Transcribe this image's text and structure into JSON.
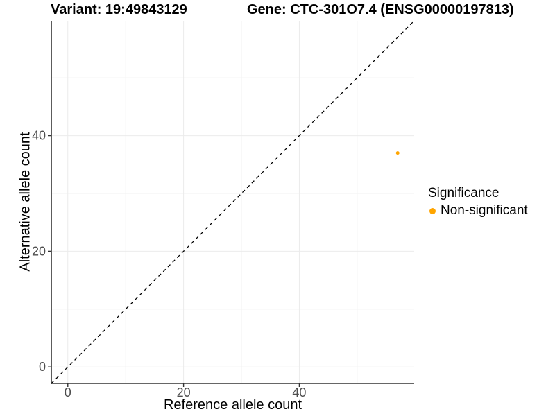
{
  "chart_data": {
    "type": "scatter",
    "title_left": "Variant: 19:49843129",
    "title_right": "Gene: CTC-301O7.4 (ENSG00000197813)",
    "xlabel": "Reference allele count",
    "ylabel": "Alternative allele count",
    "xlim": [
      -2.85,
      59.85
    ],
    "ylim": [
      -2.85,
      59.85
    ],
    "x_major_ticks": [
      0,
      20,
      40
    ],
    "y_major_ticks": [
      0,
      20,
      40
    ],
    "x_minor_gridlines": [
      10,
      30,
      50
    ],
    "y_minor_gridlines": [
      10,
      30,
      50
    ],
    "grid": true,
    "legend_position": "right",
    "reference_line": {
      "kind": "identity",
      "slope": 1,
      "intercept": 0,
      "style": "dashed",
      "color": "#000000"
    },
    "series": [
      {
        "name": "Non-significant",
        "color": "#FFA500",
        "points": [
          {
            "x": 57,
            "y": 37
          }
        ]
      }
    ],
    "legend": {
      "title": "Significance",
      "entries": [
        {
          "label": "Non-significant",
          "color": "#FFA500"
        }
      ]
    },
    "colors": {
      "background": "#FFFFFF",
      "axis_line": "#333333",
      "tick_label": "#4D4D4D",
      "major_grid": "#EBEBEB",
      "minor_grid": "#F2F2F2",
      "point": "#FFA500"
    }
  }
}
